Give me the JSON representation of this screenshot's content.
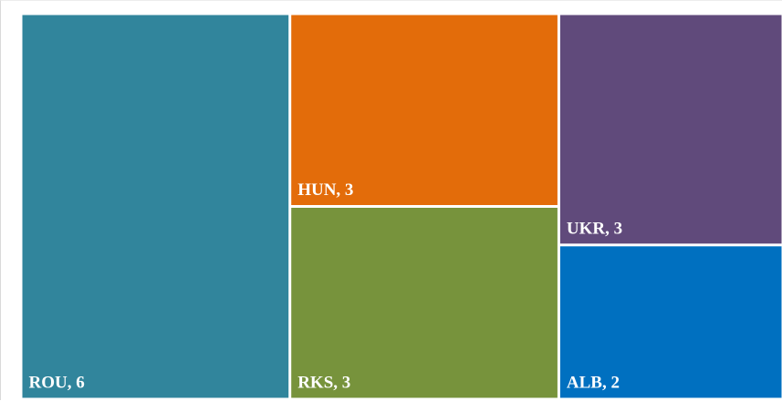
{
  "chart_data": {
    "type": "treemap",
    "title": "",
    "items": [
      {
        "code": "ROU",
        "value": 6,
        "label": "ROU, 6",
        "color": "#31859c"
      },
      {
        "code": "HUN",
        "value": 3,
        "label": "HUN, 3",
        "color": "#e36c0a"
      },
      {
        "code": "RKS",
        "value": 3,
        "label": "RKS, 3",
        "color": "#77933c"
      },
      {
        "code": "UKR",
        "value": 3,
        "label": "UKR, 3",
        "color": "#604a7b"
      },
      {
        "code": "ALB",
        "value": 2,
        "label": "ALB, 2",
        "color": "#0070c0"
      }
    ],
    "border_color": "#ffffff"
  }
}
